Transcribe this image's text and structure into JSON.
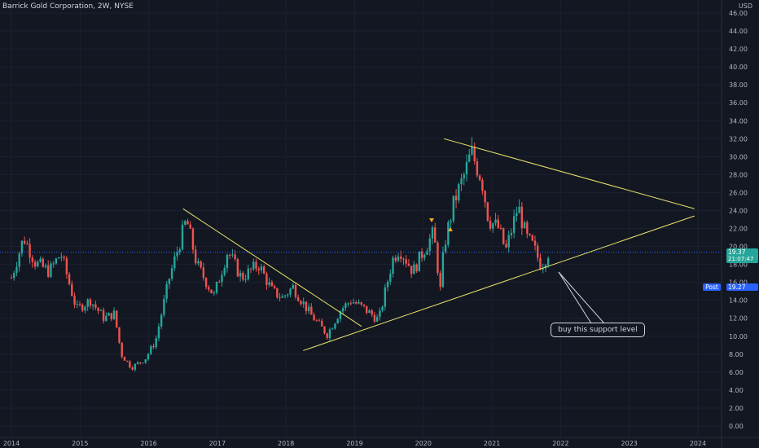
{
  "header": {
    "symbol_title": "Barrick Gold Corporation, 2W, NYSE",
    "currency": "USD"
  },
  "price_badges": {
    "last_price": "19.37",
    "countdown": "21:07:47",
    "post_label": "Post",
    "post_price": "19.27",
    "last_color": "#26a69a",
    "post_color": "#2962ff"
  },
  "annotation": {
    "text": "buy this support level"
  },
  "colors": {
    "up": "#26a69a",
    "down": "#ef5350",
    "trendline": "#e8e56a",
    "price_line": "#2962ff"
  },
  "chart_data": {
    "type": "candlestick",
    "ylim": [
      -1,
      48
    ],
    "y_ticks": [
      "0.00",
      "2.00",
      "4.00",
      "6.00",
      "8.00",
      "10.00",
      "12.00",
      "14.00",
      "16.00",
      "18.00",
      "20.00",
      "22.00",
      "24.00",
      "26.00",
      "28.00",
      "30.00",
      "32.00",
      "34.00",
      "36.00",
      "38.00",
      "40.00",
      "42.00",
      "44.00",
      "46.00"
    ],
    "x_ticks": [
      "2014",
      "2015",
      "2016",
      "2017",
      "2018",
      "2019",
      "2020",
      "2021",
      "2022",
      "2023",
      "2024"
    ],
    "price_line": 19.37,
    "close_anchors": [
      [
        2014.0,
        16.5
      ],
      [
        2014.18,
        21.0
      ],
      [
        2014.35,
        18.2
      ],
      [
        2014.55,
        17.2
      ],
      [
        2014.72,
        19.2
      ],
      [
        2014.95,
        13.0
      ],
      [
        2015.15,
        14.0
      ],
      [
        2015.35,
        12.0
      ],
      [
        2015.5,
        12.5
      ],
      [
        2015.6,
        8.0
      ],
      [
        2015.75,
        6.5
      ],
      [
        2015.95,
        7.5
      ],
      [
        2016.1,
        9.5
      ],
      [
        2016.3,
        16.5
      ],
      [
        2016.55,
        23.0
      ],
      [
        2016.7,
        18.0
      ],
      [
        2016.95,
        14.5
      ],
      [
        2017.15,
        19.5
      ],
      [
        2017.35,
        16.5
      ],
      [
        2017.6,
        18.0
      ],
      [
        2017.8,
        15.0
      ],
      [
        2017.95,
        14.3
      ],
      [
        2018.1,
        15.5
      ],
      [
        2018.35,
        12.5
      ],
      [
        2018.6,
        10.2
      ],
      [
        2018.8,
        13.0
      ],
      [
        2018.95,
        14.0
      ],
      [
        2019.15,
        13.0
      ],
      [
        2019.35,
        11.8
      ],
      [
        2019.55,
        18.5
      ],
      [
        2019.65,
        19.8
      ],
      [
        2019.85,
        17.2
      ],
      [
        2020.0,
        19.5
      ],
      [
        2020.15,
        21.5
      ],
      [
        2020.25,
        15.0
      ],
      [
        2020.3,
        20.0
      ],
      [
        2020.45,
        25.0
      ],
      [
        2020.6,
        28.0
      ],
      [
        2020.7,
        30.5
      ],
      [
        2020.85,
        27.5
      ],
      [
        2020.95,
        23.0
      ],
      [
        2021.1,
        22.0
      ],
      [
        2021.2,
        19.5
      ],
      [
        2021.38,
        24.5
      ],
      [
        2021.5,
        21.0
      ],
      [
        2021.6,
        20.0
      ],
      [
        2021.72,
        17.8
      ],
      [
        2021.82,
        19.37
      ]
    ],
    "annotations": [
      {
        "type": "trendline",
        "from": [
          2016.5,
          24.2
        ],
        "to": [
          2019.1,
          11.1
        ]
      },
      {
        "type": "trendline",
        "from": [
          2018.25,
          8.4
        ],
        "to": [
          2023.95,
          23.4
        ]
      },
      {
        "type": "trendline",
        "from": [
          2020.3,
          32.0
        ],
        "to": [
          2023.95,
          24.2
        ]
      },
      {
        "type": "callout",
        "text_ref": "annotation.text"
      }
    ]
  }
}
